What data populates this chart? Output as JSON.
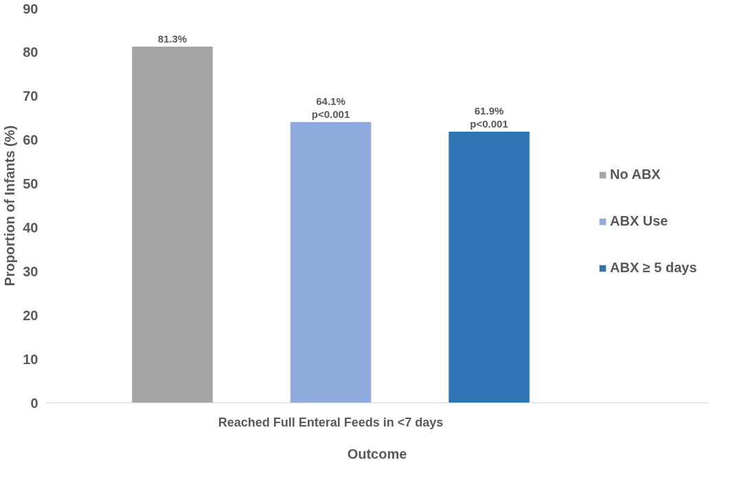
{
  "chart_data": {
    "type": "bar",
    "xlabel": "Outcome",
    "ylabel": "Proportion of Infants (%)",
    "categories": [
      "Reached Full Enteral Feeds in <7 days"
    ],
    "series": [
      {
        "name": "No ABX",
        "color": "#a5a5a5",
        "values": [
          81.3
        ],
        "value_labels": [
          "81.3%"
        ]
      },
      {
        "name": "ABX Use",
        "color": "#8faadc",
        "values": [
          64.1
        ],
        "value_labels": [
          "64.1%\np<0.001"
        ]
      },
      {
        "name": "ABX ≥ 5 days",
        "color": "#2e75b6",
        "values": [
          61.9
        ],
        "value_labels": [
          "61.9%\np<0.001"
        ]
      }
    ],
    "ylim": [
      0,
      90
    ],
    "yticks": [
      0,
      10,
      20,
      30,
      40,
      50,
      60,
      70,
      80,
      90
    ],
    "grid": false,
    "legend": "right"
  }
}
